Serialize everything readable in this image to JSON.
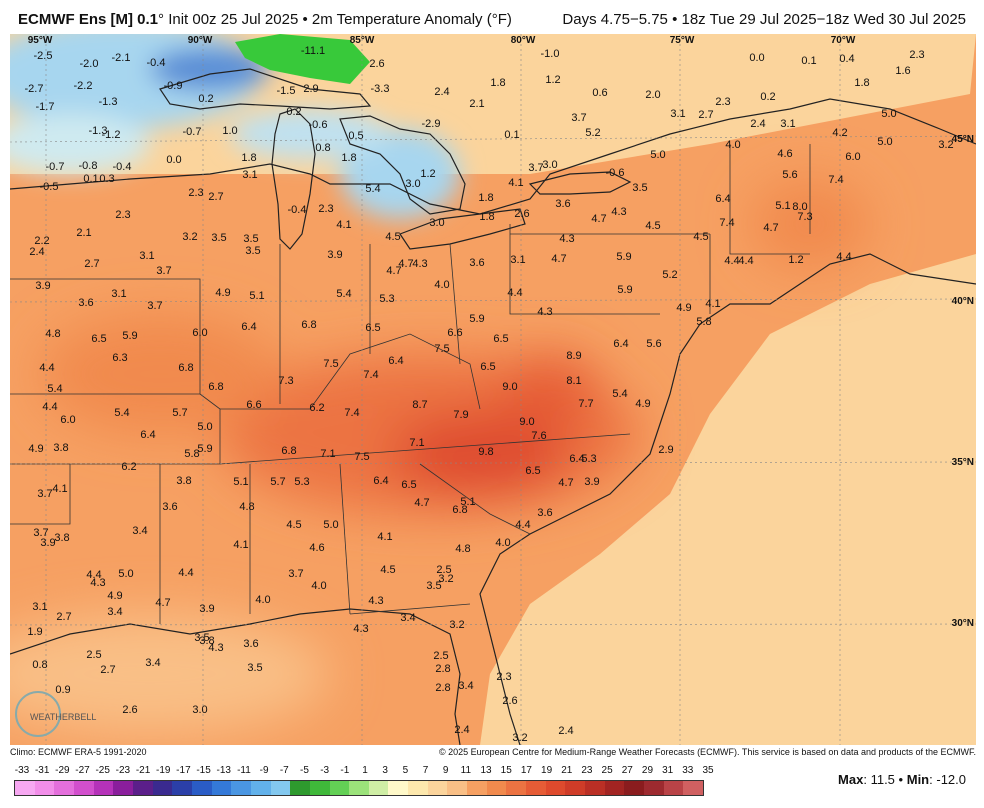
{
  "header": {
    "model": "ECMWF Ens [M] 0.1",
    "deg": "°",
    "init": "Init 00z 25 Jul 2025",
    "sep": "•",
    "field": "2m Temperature Anomaly (°F)",
    "valid": "Days 4.75−5.75 • 18z Tue 29 Jul 2025−18z Wed 30 Jul 2025"
  },
  "longitude_labels": [
    "95°W",
    "90°W",
    "85°W",
    "80°W",
    "75°W",
    "70°W"
  ],
  "latitude_labels": [
    "45°N",
    "40°N",
    "35°N",
    "30°N"
  ],
  "colors": {
    "ocean_warm": "#fbd49c",
    "land_warm": "#f6a062",
    "hot": "#e8532e",
    "cool_blue": "#5a8ed6",
    "cold_green": "#38c93a"
  },
  "values": [
    {
      "v": "-2.5"
    },
    {
      "v": "-2.0"
    },
    {
      "v": "-2.1"
    },
    {
      "v": "-0.4"
    },
    {
      "v": "-11.1"
    },
    {
      "v": "2.6"
    },
    {
      "v": "-1.0"
    },
    {
      "v": "0.0"
    },
    {
      "v": "0.1"
    },
    {
      "v": "0.4"
    },
    {
      "v": "1.6"
    },
    {
      "v": "2.3"
    },
    {
      "v": "-2.7"
    },
    {
      "v": "-2.2"
    },
    {
      "v": "-0.9"
    },
    {
      "v": "-1.5"
    },
    {
      "v": "2.9"
    },
    {
      "v": "-3.3"
    },
    {
      "v": "1.8"
    },
    {
      "v": "1.2"
    },
    {
      "v": "1.8"
    },
    {
      "v": "-1.7"
    },
    {
      "v": "-1.3"
    },
    {
      "v": "0.2"
    },
    {
      "v": "2.4"
    },
    {
      "v": "2.1"
    },
    {
      "v": "0.6"
    },
    {
      "v": "2.0"
    },
    {
      "v": "2.3"
    },
    {
      "v": "0.2"
    },
    {
      "v": "0.2"
    },
    {
      "v": "-0.6"
    },
    {
      "v": "-2.9"
    },
    {
      "v": "3.7"
    },
    {
      "v": "3.1"
    },
    {
      "v": "2.7"
    },
    {
      "v": "2.4"
    },
    {
      "v": "3.1"
    },
    {
      "v": "5.0"
    },
    {
      "v": "-1.3"
    },
    {
      "v": "-1.2"
    },
    {
      "v": "-0.7"
    },
    {
      "v": "1.0"
    },
    {
      "v": "0.5"
    },
    {
      "v": "0.1"
    },
    {
      "v": "5.2"
    },
    {
      "v": "4.2"
    },
    {
      "v": "5.0"
    },
    {
      "v": "3.2"
    },
    {
      "v": "0.8"
    },
    {
      "v": "1.8"
    },
    {
      "v": "4.0"
    },
    {
      "v": "4.6"
    },
    {
      "v": "6.0"
    },
    {
      "v": "-0.7"
    },
    {
      "v": "-0.8"
    },
    {
      "v": "-0.4"
    },
    {
      "v": "0.0"
    },
    {
      "v": "1.8"
    },
    {
      "v": "3.7"
    },
    {
      "v": "3.0"
    },
    {
      "v": "5.0"
    },
    {
      "v": "0.1"
    },
    {
      "v": "0.3"
    },
    {
      "v": "3.1"
    },
    {
      "v": "1.2"
    },
    {
      "v": "-0.6"
    },
    {
      "v": "5.6"
    },
    {
      "v": "7.4"
    },
    {
      "v": "-0.5"
    },
    {
      "v": "5.4"
    },
    {
      "v": "3.0"
    },
    {
      "v": "4.1"
    },
    {
      "v": "3.5"
    },
    {
      "v": "2.3"
    },
    {
      "v": "2.7"
    },
    {
      "v": "1.8"
    },
    {
      "v": "3.6"
    },
    {
      "v": "6.4"
    },
    {
      "v": "5.1"
    },
    {
      "v": "8.0"
    },
    {
      "v": "2.3"
    },
    {
      "v": "-0.4"
    },
    {
      "v": "2.3"
    },
    {
      "v": "1.8"
    },
    {
      "v": "2.6"
    },
    {
      "v": "4.7"
    },
    {
      "v": "4.3"
    },
    {
      "v": "7.3"
    },
    {
      "v": "4.1"
    },
    {
      "v": "3.0"
    },
    {
      "v": "4.5"
    },
    {
      "v": "7.4"
    },
    {
      "v": "2.1"
    },
    {
      "v": "3.2"
    },
    {
      "v": "3.5"
    },
    {
      "v": "3.5"
    },
    {
      "v": "4.5"
    },
    {
      "v": "4.3"
    },
    {
      "v": "4.5"
    },
    {
      "v": "4.7"
    },
    {
      "v": "2.2"
    },
    {
      "v": "3.5"
    },
    {
      "v": "3.9"
    },
    {
      "v": "4.7"
    },
    {
      "v": "3.6"
    },
    {
      "v": "3.1"
    },
    {
      "v": "4.7"
    },
    {
      "v": "5.9"
    },
    {
      "v": "4.4"
    },
    {
      "v": "1.2"
    },
    {
      "v": "4.4"
    },
    {
      "v": "2.4"
    },
    {
      "v": "2.7"
    },
    {
      "v": "3.1"
    },
    {
      "v": "3.7"
    },
    {
      "v": "4.7"
    },
    {
      "v": "4.3"
    },
    {
      "v": "4.4"
    },
    {
      "v": "4.0"
    },
    {
      "v": "5.2"
    },
    {
      "v": "3.9"
    },
    {
      "v": "3.1"
    },
    {
      "v": "4.9"
    },
    {
      "v": "5.1"
    },
    {
      "v": "5.4"
    },
    {
      "v": "4.4"
    },
    {
      "v": "5.9"
    },
    {
      "v": "3.6"
    },
    {
      "v": "3.7"
    },
    {
      "v": "5.3"
    },
    {
      "v": "4.9"
    },
    {
      "v": "4.1"
    },
    {
      "v": "4.3"
    },
    {
      "v": "5.8"
    },
    {
      "v": "4.8"
    },
    {
      "v": "6.5"
    },
    {
      "v": "5.9"
    },
    {
      "v": "6.0"
    },
    {
      "v": "6.4"
    },
    {
      "v": "6.8"
    },
    {
      "v": "6.5"
    },
    {
      "v": "6.6"
    },
    {
      "v": "5.9"
    },
    {
      "v": "6.5"
    },
    {
      "v": "6.4"
    },
    {
      "v": "5.6"
    },
    {
      "v": "4.4"
    },
    {
      "v": "6.3"
    },
    {
      "v": "6.8"
    },
    {
      "v": "7.5"
    },
    {
      "v": "6.4"
    },
    {
      "v": "7.5"
    },
    {
      "v": "8.9"
    },
    {
      "v": "7.4"
    },
    {
      "v": "6.5"
    },
    {
      "v": "5.4"
    },
    {
      "v": "6.8"
    },
    {
      "v": "7.3"
    },
    {
      "v": "9.0"
    },
    {
      "v": "8.1"
    },
    {
      "v": "5.4"
    },
    {
      "v": "4.4"
    },
    {
      "v": "5.4"
    },
    {
      "v": "5.7"
    },
    {
      "v": "6.6"
    },
    {
      "v": "6.2"
    },
    {
      "v": "7.4"
    },
    {
      "v": "8.7"
    },
    {
      "v": "7.9"
    },
    {
      "v": "7.7"
    },
    {
      "v": "4.9"
    },
    {
      "v": "6.0"
    },
    {
      "v": "5.0"
    },
    {
      "v": "6.4"
    },
    {
      "v": "9.0"
    },
    {
      "v": "4.9"
    },
    {
      "v": "3.8"
    },
    {
      "v": "5.9"
    },
    {
      "v": "7.1"
    },
    {
      "v": "7.6"
    },
    {
      "v": "5.8"
    },
    {
      "v": "6.8"
    },
    {
      "v": "7.1"
    },
    {
      "v": "7.5"
    },
    {
      "v": "9.8"
    },
    {
      "v": "2.9"
    },
    {
      "v": "6.2"
    },
    {
      "v": "6.4"
    },
    {
      "v": "5.3"
    },
    {
      "v": "6.5"
    },
    {
      "v": "3.7"
    },
    {
      "v": "4.1"
    },
    {
      "v": "3.8"
    },
    {
      "v": "5.1"
    },
    {
      "v": "5.7"
    },
    {
      "v": "5.3"
    },
    {
      "v": "6.4"
    },
    {
      "v": "6.5"
    },
    {
      "v": "4.7"
    },
    {
      "v": "3.9"
    },
    {
      "v": "3.6"
    },
    {
      "v": "4.8"
    },
    {
      "v": "4.7"
    },
    {
      "v": "5.1"
    },
    {
      "v": "6.8"
    },
    {
      "v": "3.6"
    },
    {
      "v": "3.4"
    },
    {
      "v": "4.5"
    },
    {
      "v": "5.0"
    },
    {
      "v": "4.4"
    },
    {
      "v": "3.7"
    },
    {
      "v": "3.8"
    },
    {
      "v": "4.1"
    },
    {
      "v": "4.1"
    },
    {
      "v": "4.0"
    },
    {
      "v": "3.9"
    },
    {
      "v": "4.6"
    },
    {
      "v": "4.8"
    },
    {
      "v": "4.4"
    },
    {
      "v": "5.0"
    },
    {
      "v": "4.4"
    },
    {
      "v": "3.7"
    },
    {
      "v": "4.5"
    },
    {
      "v": "2.5"
    },
    {
      "v": "4.3"
    },
    {
      "v": "4.0"
    },
    {
      "v": "3.2"
    },
    {
      "v": "4.9"
    },
    {
      "v": "3.5"
    },
    {
      "v": "4.7"
    },
    {
      "v": "4.0"
    },
    {
      "v": "4.3"
    },
    {
      "v": "3.4"
    },
    {
      "v": "3.9"
    },
    {
      "v": "3.1"
    },
    {
      "v": "2.7"
    },
    {
      "v": "3.4"
    },
    {
      "v": "3.2"
    },
    {
      "v": "3.8"
    },
    {
      "v": "4.3"
    },
    {
      "v": "1.9"
    },
    {
      "v": "3.5"
    },
    {
      "v": "4.3"
    },
    {
      "v": "3.6"
    },
    {
      "v": "2.5"
    },
    {
      "v": "2.5"
    },
    {
      "v": "0.8"
    },
    {
      "v": "2.7"
    },
    {
      "v": "3.4"
    },
    {
      "v": "3.5"
    },
    {
      "v": "2.8"
    },
    {
      "v": "2.3"
    },
    {
      "v": "0.9"
    },
    {
      "v": "3.4"
    },
    {
      "v": "2.8"
    },
    {
      "v": "2.6"
    },
    {
      "v": "2.6"
    },
    {
      "v": "3.0"
    },
    {
      "v": "2.4"
    },
    {
      "v": "3.2"
    },
    {
      "v": "2.4"
    }
  ],
  "credits": {
    "climo": "Climo: ECMWF ERA-5 1991-2020",
    "copyright": "© 2025 European Centre for Medium-Range Weather Forecasts (ECMWF). This service is based on data and products of the ECMWF."
  },
  "logo_text": "WEATHERBELL",
  "legend": {
    "ticks": [
      "-33",
      "-31",
      "-29",
      "-27",
      "-25",
      "-23",
      "-21",
      "-19",
      "-17",
      "-15",
      "-13",
      "-11",
      "-9",
      "-7",
      "-5",
      "-3",
      "-1",
      "1",
      "3",
      "5",
      "7",
      "9",
      "11",
      "13",
      "15",
      "17",
      "19",
      "21",
      "23",
      "25",
      "27",
      "29",
      "31",
      "33",
      "35"
    ],
    "colors": [
      "#f7a8f2",
      "#f28ee9",
      "#e46fdc",
      "#d24fcd",
      "#b532b9",
      "#8a1e9c",
      "#5b1f8a",
      "#3a2a8f",
      "#2b3fa8",
      "#2a5cc6",
      "#3479d8",
      "#4a96e2",
      "#62b1ea",
      "#83c8ef",
      "#2e9a2e",
      "#3fb83a",
      "#63d055",
      "#9be27a",
      "#cfeea5",
      "#fff9c9",
      "#fde8ad",
      "#fbd49c",
      "#f9bf86",
      "#f6a062",
      "#f18a4d",
      "#ec7342",
      "#e65c36",
      "#de4a2d",
      "#cf3c28",
      "#ba2f25",
      "#a22422",
      "#8a1c1e",
      "#9d2a2f",
      "#b94347",
      "#d06061"
    ],
    "max_label": "Max",
    "max_value": "11.5",
    "bullet": "•",
    "min_label": "Min",
    "min_value": "-12.0"
  }
}
